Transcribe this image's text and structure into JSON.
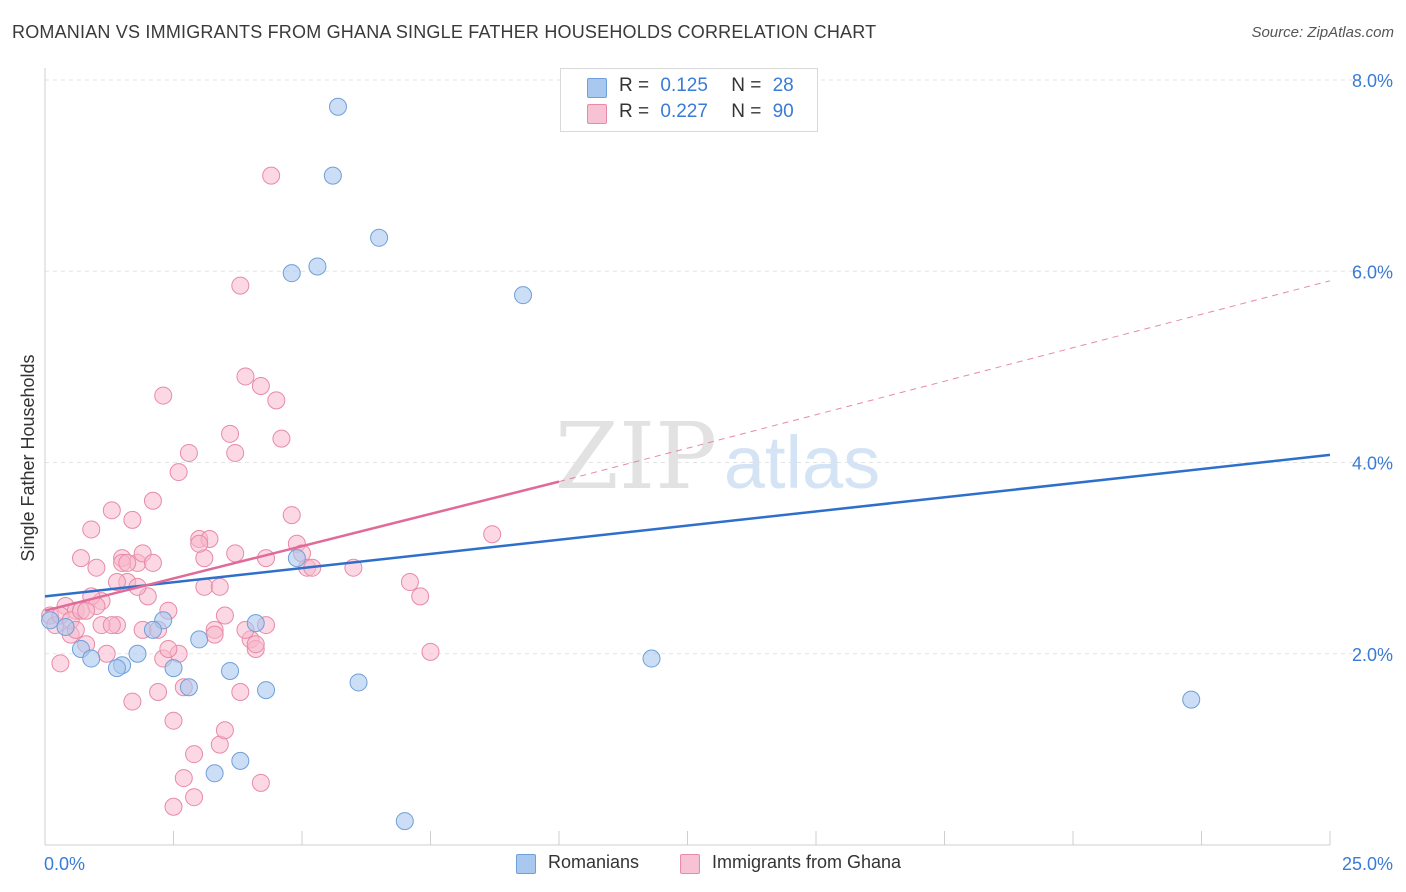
{
  "title": "ROMANIAN VS IMMIGRANTS FROM GHANA SINGLE FATHER HOUSEHOLDS CORRELATION CHART",
  "source": "Source: ZipAtlas.com",
  "watermark": {
    "zip": "ZIP",
    "atlas": "atlas"
  },
  "legend": {
    "r_label": "R =",
    "n_label": "N =",
    "romanians": {
      "r": "0.125",
      "n": "28"
    },
    "ghana": {
      "r": "0.227",
      "n": "90"
    }
  },
  "colors": {
    "romanians_fill": "#a8c8f0",
    "romanians_stroke": "#6f9fd8",
    "romanians_line": "#2e6fcc",
    "ghana_fill": "#f7b8cc",
    "ghana_stroke": "#e88aa8",
    "ghana_line": "#e06b98",
    "tick_label": "#3a7bd5"
  },
  "chart_data": {
    "type": "scatter",
    "title": "ROMANIAN VS IMMIGRANTS FROM GHANA SINGLE FATHER HOUSEHOLDS CORRELATION CHART",
    "xlabel": "",
    "ylabel": "Single Father Households",
    "xlim": [
      0,
      25
    ],
    "ylim": [
      0,
      8.0
    ],
    "x_tick_labels": [
      "0.0%",
      "25.0%"
    ],
    "y_ticks": [
      2.0,
      4.0,
      6.0,
      8.0
    ],
    "y_tick_labels": [
      "2.0%",
      "4.0%",
      "6.0%",
      "8.0%"
    ],
    "grid": true,
    "legend_position": "top-center",
    "series": [
      {
        "name": "Romanians",
        "x": [
          0.1,
          0.4,
          0.7,
          0.9,
          1.5,
          1.4,
          1.8,
          2.3,
          2.1,
          2.5,
          2.8,
          3.0,
          3.3,
          3.6,
          3.8,
          4.1,
          4.3,
          4.8,
          4.9,
          5.3,
          5.6,
          5.7,
          6.1,
          6.5,
          7.0,
          9.3,
          11.8,
          22.3
        ],
        "y": [
          2.35,
          2.28,
          2.05,
          1.95,
          1.88,
          1.85,
          2.0,
          2.35,
          2.25,
          1.85,
          1.65,
          2.15,
          0.75,
          1.82,
          0.88,
          2.32,
          1.62,
          5.98,
          3.0,
          6.05,
          7.0,
          7.72,
          1.7,
          6.35,
          0.25,
          5.75,
          1.95,
          1.52
        ]
      },
      {
        "name": "Immigrants from Ghana",
        "x": [
          0.1,
          0.2,
          0.3,
          0.4,
          0.5,
          0.6,
          0.7,
          0.8,
          0.9,
          1.0,
          1.1,
          1.2,
          1.3,
          1.4,
          1.5,
          1.6,
          1.7,
          1.8,
          1.9,
          2.0,
          2.1,
          2.2,
          2.3,
          2.4,
          2.5,
          2.6,
          2.7,
          2.8,
          2.9,
          3.0,
          3.1,
          3.2,
          3.3,
          3.4,
          3.5,
          3.6,
          3.7,
          3.8,
          3.9,
          4.0,
          4.1,
          4.2,
          4.3,
          4.4,
          4.5,
          4.6,
          4.8,
          4.9,
          5.0,
          5.1,
          5.2,
          0.3,
          0.5,
          0.7,
          0.9,
          1.1,
          1.3,
          1.5,
          1.7,
          1.9,
          2.1,
          2.3,
          2.5,
          2.7,
          2.9,
          3.1,
          3.3,
          3.5,
          3.7,
          3.9,
          4.1,
          4.3,
          0.6,
          1.0,
          1.4,
          1.8,
          2.2,
          2.6,
          3.0,
          3.4,
          3.8,
          4.2,
          6.0,
          7.1,
          7.3,
          7.5,
          8.7,
          0.8,
          1.6,
          2.4
        ],
        "y": [
          2.4,
          2.3,
          1.9,
          2.5,
          2.2,
          2.45,
          3.0,
          2.1,
          3.3,
          2.9,
          2.55,
          2.0,
          3.5,
          2.3,
          3.0,
          2.75,
          1.5,
          2.95,
          3.05,
          2.6,
          2.95,
          1.6,
          4.7,
          2.45,
          1.3,
          2.0,
          0.7,
          4.1,
          0.5,
          3.2,
          2.7,
          3.2,
          2.25,
          1.05,
          1.2,
          4.3,
          4.1,
          5.85,
          4.9,
          2.15,
          2.05,
          4.8,
          3.0,
          7.0,
          4.65,
          4.25,
          3.45,
          3.15,
          3.05,
          2.9,
          2.9,
          2.4,
          2.35,
          2.45,
          2.6,
          2.3,
          2.3,
          2.95,
          3.4,
          2.25,
          3.6,
          1.95,
          0.4,
          1.65,
          0.95,
          3.0,
          2.2,
          2.4,
          3.05,
          2.25,
          2.1,
          2.3,
          2.25,
          2.5,
          2.75,
          2.7,
          2.25,
          3.9,
          3.15,
          2.7,
          1.6,
          0.65,
          2.9,
          2.75,
          2.6,
          2.02,
          3.25,
          2.45,
          2.95,
          2.05
        ]
      }
    ],
    "trendlines": [
      {
        "series": "Romanians",
        "x": [
          0,
          25
        ],
        "y": [
          2.6,
          4.08
        ],
        "style": "solid"
      },
      {
        "series": "Immigrants from Ghana",
        "x": [
          0,
          10
        ],
        "y": [
          2.45,
          3.8
        ],
        "style": "solid"
      },
      {
        "series": "Immigrants from Ghana",
        "x": [
          10,
          25
        ],
        "y": [
          3.8,
          5.9
        ],
        "style": "dashed"
      }
    ]
  }
}
